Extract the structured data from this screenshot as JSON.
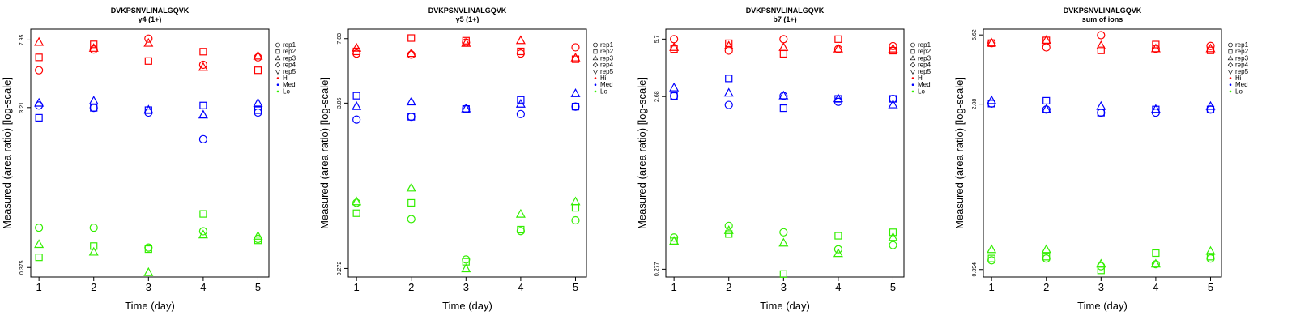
{
  "chart_data": [
    {
      "type": "scatter",
      "title": "DVKPSNVLINALGQVK",
      "subtitle": "y4 (1+)",
      "xlabel": "Time (day)",
      "ylabel": "Measured (area ratio) [log-scale]",
      "log_y": true,
      "x_ticks": [
        "1",
        "2",
        "3",
        "4",
        "5"
      ],
      "y_ticks": [
        "0.375",
        "3.21",
        "7.95"
      ],
      "ylim": [
        0.33,
        9.2
      ],
      "xlim": [
        0.85,
        5.2
      ],
      "series": [
        {
          "name": "Hi",
          "color": "#ff0000",
          "points": [
            {
              "rep": "rep1",
              "values": [
                5.3,
                7.0,
                8.1,
                5.7,
                6.3
              ]
            },
            {
              "rep": "rep2",
              "values": [
                6.3,
                7.5,
                6.0,
                6.8,
                5.3
              ]
            },
            {
              "rep": "rep3",
              "values": [
                7.7,
                7.1,
                7.6,
                5.5,
                6.4
              ]
            }
          ]
        },
        {
          "name": "Med",
          "color": "#0000ff",
          "points": [
            {
              "rep": "rep1",
              "values": [
                3.3,
                3.2,
                3.0,
                2.1,
                3.0
              ]
            },
            {
              "rep": "rep2",
              "values": [
                2.8,
                3.2,
                3.1,
                3.3,
                3.1
              ]
            },
            {
              "rep": "rep3",
              "values": [
                3.4,
                3.5,
                3.1,
                2.9,
                3.4
              ]
            }
          ]
        },
        {
          "name": "Lo",
          "color": "#33ee00",
          "points": [
            {
              "rep": "rep1",
              "values": [
                0.64,
                0.64,
                0.49,
                0.61,
                0.55
              ]
            },
            {
              "rep": "rep2",
              "values": [
                0.43,
                0.5,
                0.48,
                0.77,
                0.54
              ]
            },
            {
              "rep": "rep3",
              "values": [
                0.51,
                0.46,
                0.35,
                0.58,
                0.57
              ]
            }
          ]
        }
      ],
      "legend": [
        "rep1",
        "rep2",
        "rep3",
        "rep4",
        "rep5",
        "Hi",
        "Med",
        "Lo"
      ],
      "legend_position": "right"
    },
    {
      "type": "scatter",
      "title": "DVKPSNVLINALGQVK",
      "subtitle": "y5 (1+)",
      "xlabel": "Time (day)",
      "ylabel": "Measured (area ratio) [log-scale]",
      "log_y": true,
      "x_ticks": [
        "1",
        "2",
        "3",
        "4",
        "5"
      ],
      "y_ticks": [
        "0.272",
        "3.05",
        "7.83"
      ],
      "ylim": [
        0.24,
        9.0
      ],
      "xlim": [
        0.85,
        5.2
      ],
      "series": [
        {
          "name": "Hi",
          "color": "#ff0000",
          "points": [
            {
              "rep": "rep1",
              "values": [
                6.3,
                6.2,
                7.4,
                6.3,
                6.9
              ]
            },
            {
              "rep": "rep2",
              "values": [
                6.5,
                7.9,
                7.6,
                6.5,
                5.8
              ]
            },
            {
              "rep": "rep3",
              "values": [
                6.8,
                6.3,
                7.3,
                7.6,
                5.9
              ]
            }
          ]
        },
        {
          "name": "Med",
          "color": "#0000ff",
          "points": [
            {
              "rep": "rep1",
              "values": [
                2.4,
                2.5,
                2.8,
                2.6,
                2.9
              ]
            },
            {
              "rep": "rep2",
              "values": [
                3.4,
                2.5,
                2.8,
                3.2,
                2.9
              ]
            },
            {
              "rep": "rep3",
              "values": [
                2.9,
                3.1,
                2.8,
                3.0,
                3.5
              ]
            }
          ]
        },
        {
          "name": "Lo",
          "color": "#33ee00",
          "points": [
            {
              "rep": "rep1",
              "values": [
                0.71,
                0.56,
                0.31,
                0.47,
                0.55
              ]
            },
            {
              "rep": "rep2",
              "values": [
                0.61,
                0.71,
                0.3,
                0.48,
                0.66
              ]
            },
            {
              "rep": "rep3",
              "values": [
                0.72,
                0.88,
                0.27,
                0.6,
                0.72
              ]
            }
          ]
        }
      ],
      "legend": [
        "rep1",
        "rep2",
        "rep3",
        "rep4",
        "rep5",
        "Hi",
        "Med",
        "Lo"
      ],
      "legend_position": "right"
    },
    {
      "type": "scatter",
      "title": "DVKPSNVLINALGQVK",
      "subtitle": "b7 (1+)",
      "xlabel": "Time (day)",
      "ylabel": "Measured (area ratio) [log-scale]",
      "log_y": true,
      "x_ticks": [
        "1",
        "2",
        "3",
        "4",
        "5"
      ],
      "y_ticks": [
        "0.277",
        "2.68",
        "5.7"
      ],
      "ylim": [
        0.25,
        6.5
      ],
      "xlim": [
        0.85,
        5.2
      ],
      "series": [
        {
          "name": "Hi",
          "color": "#ff0000",
          "points": [
            {
              "rep": "rep1",
              "values": [
                5.7,
                4.9,
                5.7,
                5.0,
                5.2
              ]
            },
            {
              "rep": "rep2",
              "values": [
                5.0,
                5.4,
                4.7,
                5.7,
                4.9
              ]
            },
            {
              "rep": "rep3",
              "values": [
                5.1,
                5.2,
                5.1,
                5.0,
                5.0
              ]
            }
          ]
        },
        {
          "name": "Med",
          "color": "#0000ff",
          "points": [
            {
              "rep": "rep1",
              "values": [
                2.7,
                2.4,
                2.7,
                2.5,
                2.6
              ]
            },
            {
              "rep": "rep2",
              "values": [
                2.7,
                3.4,
                2.3,
                2.6,
                2.6
              ]
            },
            {
              "rep": "rep3",
              "values": [
                3.0,
                2.8,
                2.7,
                2.6,
                2.4
              ]
            }
          ]
        },
        {
          "name": "Lo",
          "color": "#33ee00",
          "points": [
            {
              "rep": "rep1",
              "values": [
                0.42,
                0.49,
                0.45,
                0.36,
                0.38
              ]
            },
            {
              "rep": "rep2",
              "values": [
                0.4,
                0.44,
                0.26,
                0.43,
                0.45
              ]
            },
            {
              "rep": "rep3",
              "values": [
                0.4,
                0.46,
                0.39,
                0.34,
                0.42
              ]
            }
          ]
        }
      ],
      "legend": [
        "rep1",
        "rep2",
        "rep3",
        "rep4",
        "rep5",
        "Hi",
        "Med",
        "Lo"
      ],
      "legend_position": "right"
    },
    {
      "type": "scatter",
      "title": "DVKPSNVLINALGQVK",
      "subtitle": "sum of ions",
      "xlabel": "Time (day)",
      "ylabel": "Measured (area ratio) [log-scale]",
      "log_y": true,
      "x_ticks": [
        "1",
        "2",
        "3",
        "4",
        "5"
      ],
      "y_ticks": [
        "0.394",
        "2.88",
        "6.62"
      ],
      "ylim": [
        0.36,
        7.1
      ],
      "xlim": [
        0.85,
        5.2
      ],
      "series": [
        {
          "name": "Hi",
          "color": "#ff0000",
          "points": [
            {
              "rep": "rep1",
              "values": [
                6.0,
                5.7,
                6.6,
                5.6,
                5.8
              ]
            },
            {
              "rep": "rep2",
              "values": [
                6.0,
                6.2,
                5.5,
                5.9,
                5.5
              ]
            },
            {
              "rep": "rep3",
              "values": [
                6.0,
                6.2,
                5.8,
                5.6,
                5.6
              ]
            }
          ]
        },
        {
          "name": "Med",
          "color": "#0000ff",
          "points": [
            {
              "rep": "rep1",
              "values": [
                2.9,
                2.7,
                2.6,
                2.6,
                2.7
              ]
            },
            {
              "rep": "rep2",
              "values": [
                2.9,
                3.0,
                2.6,
                2.7,
                2.7
              ]
            },
            {
              "rep": "rep3",
              "values": [
                3.0,
                2.7,
                2.8,
                2.7,
                2.8
              ]
            }
          ]
        },
        {
          "name": "Lo",
          "color": "#33ee00",
          "points": [
            {
              "rep": "rep1",
              "values": [
                0.44,
                0.45,
                0.41,
                0.42,
                0.45
              ]
            },
            {
              "rep": "rep2",
              "values": [
                0.45,
                0.46,
                0.39,
                0.48,
                0.46
              ]
            },
            {
              "rep": "rep3",
              "values": [
                0.5,
                0.5,
                0.42,
                0.42,
                0.49
              ]
            }
          ]
        }
      ],
      "legend": [
        "rep1",
        "rep2",
        "rep3",
        "rep4",
        "rep5",
        "Hi",
        "Med",
        "Lo"
      ],
      "legend_position": "right"
    }
  ]
}
